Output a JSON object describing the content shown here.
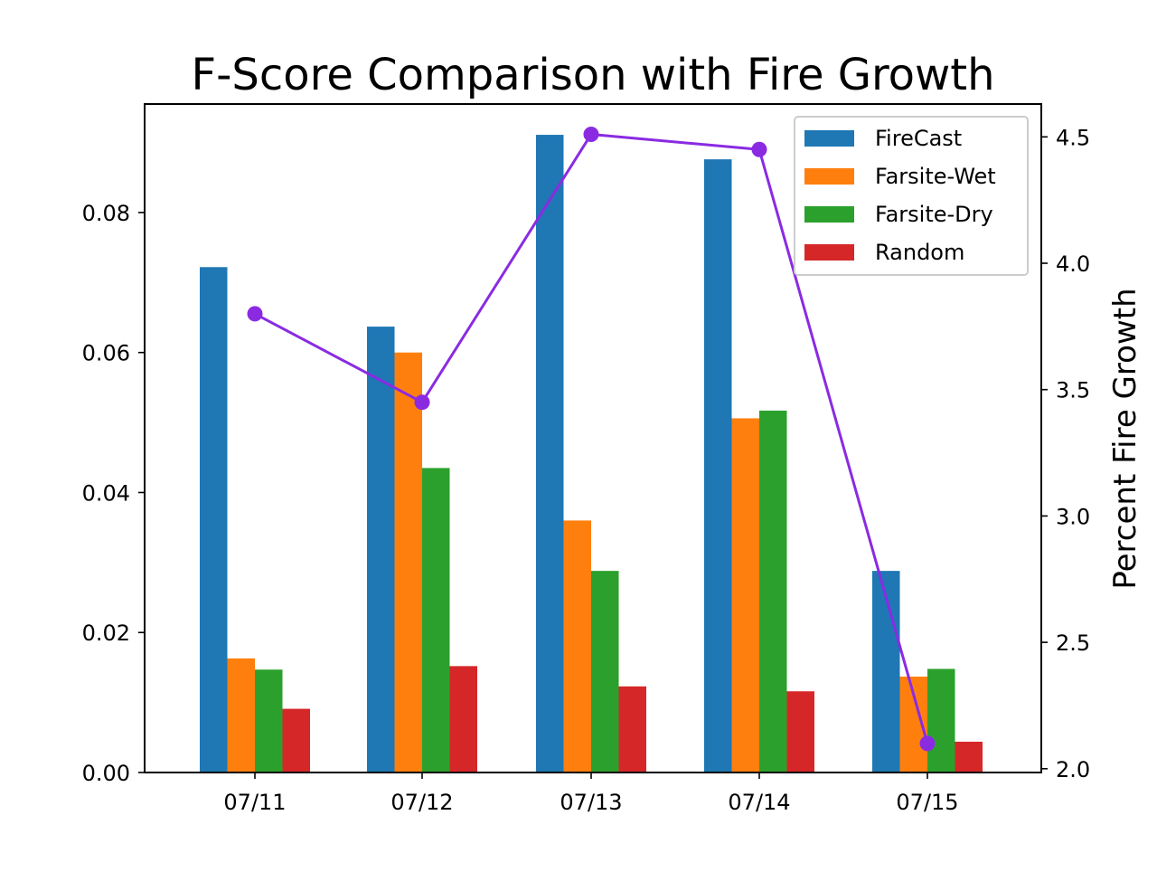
{
  "chart_data": {
    "type": "bar",
    "title": "F-Score Comparison with Fire Growth",
    "xlabel": "",
    "ylabel": "",
    "y2label": "Percent Fire Growth",
    "categories": [
      "07/11",
      "07/12",
      "07/13",
      "07/14",
      "07/15"
    ],
    "ylim": [
      0,
      0.0955
    ],
    "yticks": [
      0.0,
      0.02,
      0.04,
      0.06,
      0.08
    ],
    "ytick_labels": [
      "0.00",
      "0.02",
      "0.04",
      "0.06",
      "0.08"
    ],
    "y2lim": [
      1.985,
      4.63
    ],
    "y2ticks": [
      2.0,
      2.5,
      3.0,
      3.5,
      4.0,
      4.5
    ],
    "y2tick_labels": [
      "2.0",
      "2.5",
      "3.0",
      "3.5",
      "4.0",
      "4.5"
    ],
    "series": [
      {
        "name": "FireCast",
        "color": "#1f77b4",
        "values": [
          0.0722,
          0.0637,
          0.0911,
          0.0876,
          0.0288
        ]
      },
      {
        "name": "Farsite-Wet",
        "color": "#ff7f0e",
        "values": [
          0.0163,
          0.06,
          0.036,
          0.0506,
          0.0137
        ]
      },
      {
        "name": "Farsite-Dry",
        "color": "#2ca02c",
        "values": [
          0.0147,
          0.0435,
          0.0288,
          0.0517,
          0.0148
        ]
      },
      {
        "name": "Random",
        "color": "#d62728",
        "values": [
          0.0091,
          0.0152,
          0.0123,
          0.0116,
          0.0044
        ]
      }
    ],
    "line_series": {
      "name": "",
      "color": "#8a2be2",
      "axis": "right",
      "values": [
        3.8,
        3.45,
        4.51,
        4.45,
        2.1
      ]
    },
    "grid": false,
    "legend_position": "upper right"
  }
}
